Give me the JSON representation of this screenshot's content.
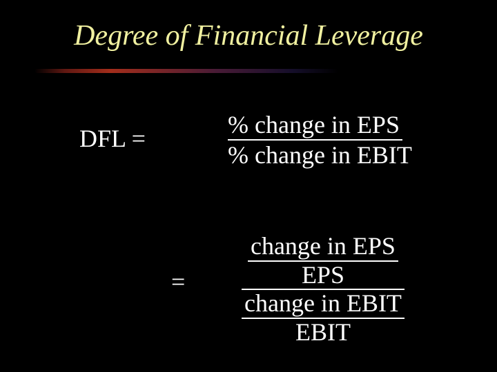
{
  "title": "Degree of Financial Leverage",
  "eq1": {
    "left": "DFL  =",
    "numerator": "% change in  EPS",
    "denominator": "% change in EBIT"
  },
  "eq2": {
    "equals": "=",
    "top_num": "change in  EPS",
    "top_den": "EPS",
    "bot_num": "change in EBIT",
    "bot_den": "EBIT"
  },
  "colors": {
    "background": "#000000",
    "title": "#f0f0a0",
    "text": "#ffffff"
  }
}
